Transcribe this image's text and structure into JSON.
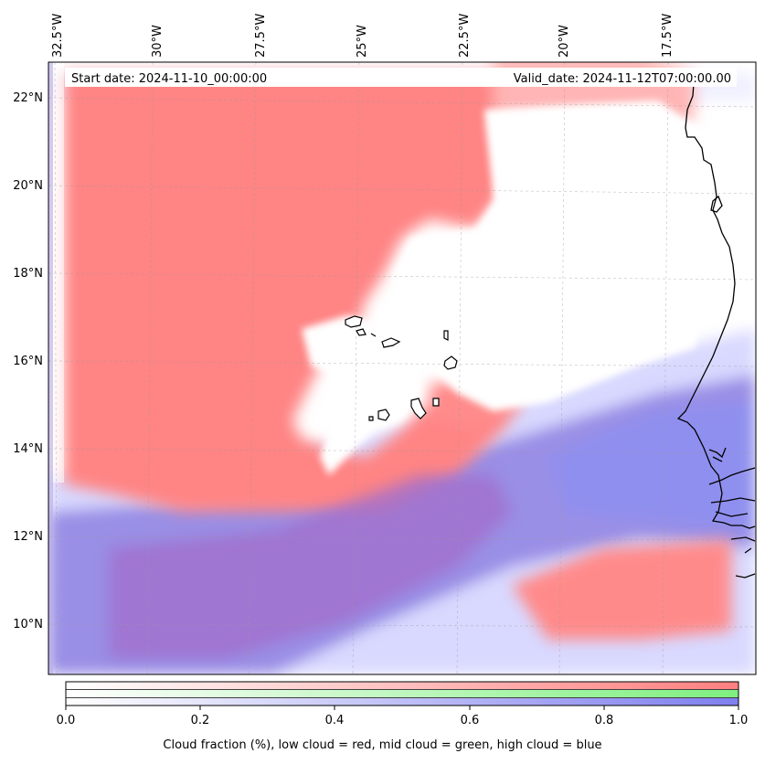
{
  "header": {
    "start_date": "Start date: 2024-11-10_00:00:00",
    "valid_date": "Valid_date: 2024-11-12T07:00:00.00"
  },
  "map": {
    "lon_labels": [
      "32.5°W",
      "30°W",
      "27.5°W",
      "25°W",
      "22.5°W",
      "20°W",
      "17.5°W"
    ],
    "lat_labels": [
      "22°N",
      "20°N",
      "18°N",
      "16°N",
      "14°N",
      "12°N",
      "10°N"
    ]
  },
  "colorbar": {
    "ticks": [
      "0.0",
      "0.2",
      "0.4",
      "0.6",
      "0.8",
      "1.0"
    ],
    "caption": "Cloud fraction (%), low cloud = red, mid cloud = green, high cloud = blue",
    "colors": {
      "low": "#ff7f7f",
      "mid": "#7fef7f",
      "high": "#7f7fef"
    }
  }
}
